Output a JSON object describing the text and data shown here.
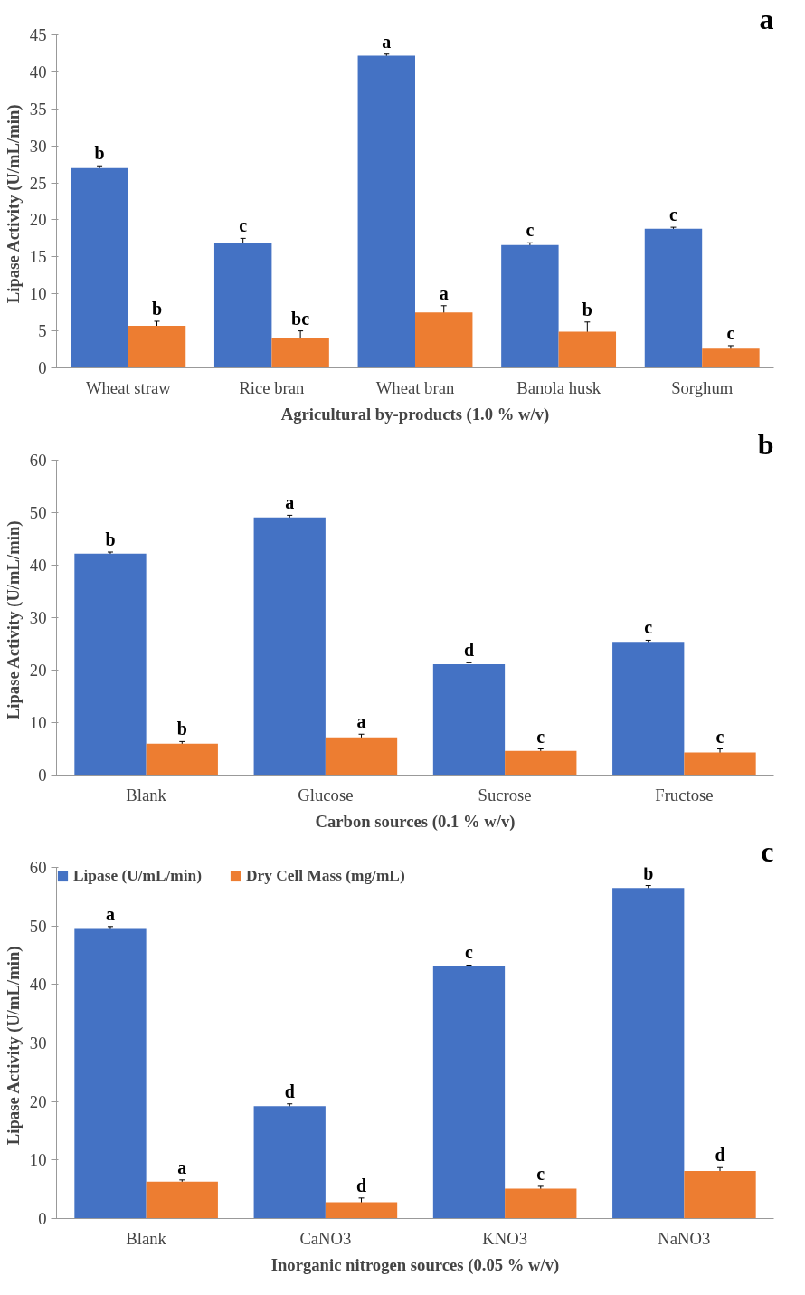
{
  "chart_data": [
    {
      "type": "bar",
      "title": "a",
      "xlabel": "Agricultural by-products (1.0 % w/v)",
      "ylabel": "Lipase Activity  (U/mL/min)",
      "categories": [
        "Wheat straw",
        "Rice bran",
        "Wheat bran",
        "Banola husk",
        "Sorghum"
      ],
      "ylim": [
        0,
        45
      ],
      "yticks": [
        0,
        5,
        10,
        15,
        20,
        25,
        30,
        35,
        40,
        45
      ],
      "grid": false,
      "series": [
        {
          "color": "#4472c4",
          "values": [
            27.0,
            16.9,
            42.2,
            16.6,
            18.8
          ],
          "errors": [
            0.3,
            0.6,
            0.2,
            0.3,
            0.2
          ],
          "value_labels": [
            "b",
            "c",
            "a",
            "c",
            "c"
          ]
        },
        {
          "color": "#ed7d31",
          "values": [
            5.7,
            4.0,
            7.5,
            4.9,
            2.6
          ],
          "errors": [
            0.6,
            1.0,
            0.9,
            1.3,
            0.4
          ],
          "value_labels": [
            "b",
            "bc",
            "a",
            "b",
            "c"
          ]
        }
      ]
    },
    {
      "type": "bar",
      "title": "b",
      "xlabel": "Carbon sources (0.1 % w/v)",
      "ylabel": "Lipase Activity  (U/mL/min)",
      "categories": [
        "Blank",
        "Glucose",
        "Sucrose",
        "Fructose"
      ],
      "ylim": [
        0,
        60
      ],
      "yticks": [
        0,
        10,
        20,
        30,
        40,
        50,
        60
      ],
      "grid": false,
      "series": [
        {
          "color": "#4472c4",
          "values": [
            42.2,
            49.1,
            21.1,
            25.4
          ],
          "errors": [
            0.3,
            0.4,
            0.3,
            0.3
          ],
          "value_labels": [
            "b",
            "a",
            "d",
            "c"
          ]
        },
        {
          "color": "#ed7d31",
          "values": [
            6.0,
            7.2,
            4.6,
            4.3
          ],
          "errors": [
            0.4,
            0.6,
            0.4,
            0.7
          ],
          "value_labels": [
            "b",
            "a",
            "c",
            "c"
          ]
        }
      ]
    },
    {
      "type": "bar",
      "title": "c",
      "xlabel": "Inorganic nitrogen sources (0.05 % w/v)",
      "ylabel": "Lipase Activity  (U/mL/min)",
      "categories": [
        "Blank",
        "CaNO3",
        "KNO3",
        "NaNO3"
      ],
      "ylim": [
        0,
        60
      ],
      "yticks": [
        0,
        10,
        20,
        30,
        40,
        50,
        60
      ],
      "grid": false,
      "legend": "top",
      "series": [
        {
          "name": "Lipase (U/mL/min)",
          "color": "#4472c4",
          "values": [
            49.5,
            19.2,
            43.1,
            56.5
          ],
          "errors": [
            0.4,
            0.4,
            0.2,
            0.4
          ],
          "value_labels": [
            "a",
            "d",
            "c",
            "b"
          ]
        },
        {
          "name": "Dry Cell Mass (mg/mL)",
          "color": "#ed7d31",
          "values": [
            6.3,
            2.8,
            5.1,
            8.1
          ],
          "errors": [
            0.3,
            0.7,
            0.4,
            0.6
          ],
          "value_labels": [
            "a",
            "d",
            "c",
            "d"
          ]
        }
      ]
    }
  ]
}
